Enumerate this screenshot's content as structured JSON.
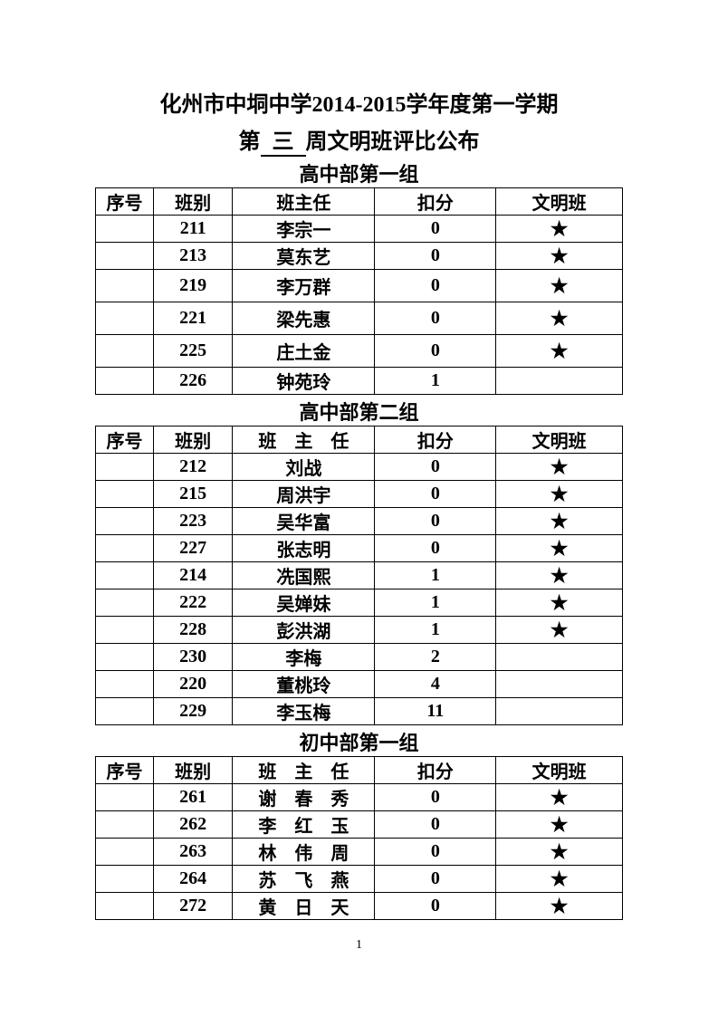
{
  "title_line1": "化州市中垌中学2014-2015学年度第一学期",
  "title_line2_prefix": "第",
  "title_line2_week": "三",
  "title_line2_suffix": "周文明班评比公布",
  "star_symbol": "★",
  "columns": {
    "seq": "序号",
    "class": "班别",
    "teacher": "班主任",
    "teacher_spaced": "班　主　任",
    "score": "扣分",
    "award": "文明班"
  },
  "group1": {
    "title": "高中部第一组",
    "rows": [
      {
        "class": "211",
        "teacher": "李宗一",
        "score": "0",
        "star": true,
        "tall": false
      },
      {
        "class": "213",
        "teacher": "莫东艺",
        "score": "0",
        "star": true,
        "tall": false
      },
      {
        "class": "219",
        "teacher": "李万群",
        "score": "0",
        "star": true,
        "tall": true
      },
      {
        "class": "221",
        "teacher": "梁先惠",
        "score": "0",
        "star": true,
        "tall": true
      },
      {
        "class": "225",
        "teacher": "庄土金",
        "score": "0",
        "star": true,
        "tall": true
      },
      {
        "class": "226",
        "teacher": "钟苑玲",
        "score": "1",
        "star": false,
        "tall": false
      }
    ]
  },
  "group2": {
    "title": "高中部第二组",
    "rows": [
      {
        "class": "212",
        "teacher": "刘战",
        "score": "0",
        "star": true
      },
      {
        "class": "215",
        "teacher": "周洪宇",
        "score": "0",
        "star": true
      },
      {
        "class": "223",
        "teacher": "吴华富",
        "score": "0",
        "star": true
      },
      {
        "class": "227",
        "teacher": "张志明",
        "score": "0",
        "star": true
      },
      {
        "class": "214",
        "teacher": "冼国熙",
        "score": "1",
        "star": true
      },
      {
        "class": "222",
        "teacher": "吴婵妹",
        "score": "1",
        "star": true
      },
      {
        "class": "228",
        "teacher": "彭洪湖",
        "score": "1",
        "star": true
      },
      {
        "class": "230",
        "teacher": "李梅",
        "score": "2",
        "star": false
      },
      {
        "class": "220",
        "teacher": "董桃玲",
        "score": "4",
        "star": false
      },
      {
        "class": "229",
        "teacher": "李玉梅",
        "score": "11",
        "star": false
      }
    ]
  },
  "group3": {
    "title": "初中部第一组",
    "rows": [
      {
        "class": "261",
        "teacher": "谢　春　秀",
        "score": "0",
        "star": true
      },
      {
        "class": "262",
        "teacher": "李　红　玉",
        "score": "0",
        "star": true
      },
      {
        "class": "263",
        "teacher": "林　伟　周",
        "score": "0",
        "star": true
      },
      {
        "class": "264",
        "teacher": "苏　飞　燕",
        "score": "0",
        "star": true
      },
      {
        "class": "272",
        "teacher": "黄　日　天",
        "score": "0",
        "star": true
      }
    ]
  },
  "page_number": "1"
}
